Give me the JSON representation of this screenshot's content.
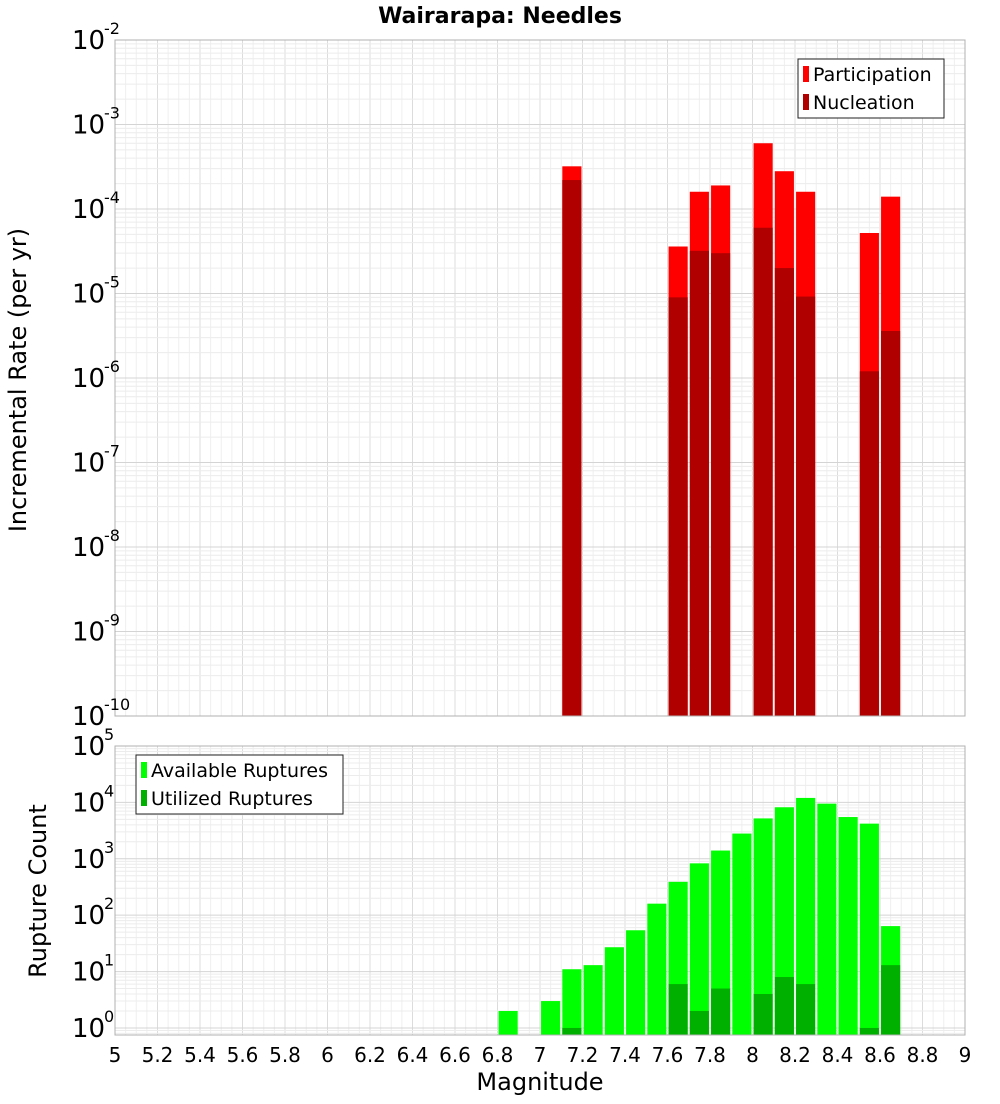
{
  "chart_data": [
    {
      "type": "bar",
      "title": "Wairarapa: Needles",
      "ylabel": "Incremental Rate (per yr)",
      "xlabel": "",
      "xlim": [
        5,
        9
      ],
      "ylim": [
        1e-10,
        0.01
      ],
      "yscale": "log",
      "grid": true,
      "legend_position": "top-right",
      "bar_width": 0.09,
      "series": [
        {
          "name": "Participation",
          "color": "#ff0000",
          "points": [
            {
              "x": 7.15,
              "y": 0.00032
            },
            {
              "x": 7.65,
              "y": 3.6e-05
            },
            {
              "x": 7.75,
              "y": 0.00016
            },
            {
              "x": 7.85,
              "y": 0.00019
            },
            {
              "x": 8.05,
              "y": 0.0006
            },
            {
              "x": 8.15,
              "y": 0.00028
            },
            {
              "x": 8.25,
              "y": 0.00016
            },
            {
              "x": 8.55,
              "y": 5.2e-05
            },
            {
              "x": 8.65,
              "y": 0.00014
            }
          ]
        },
        {
          "name": "Nucleation",
          "color": "#b00000",
          "points": [
            {
              "x": 7.15,
              "y": 0.00022
            },
            {
              "x": 7.65,
              "y": 9e-06
            },
            {
              "x": 7.75,
              "y": 3.2e-05
            },
            {
              "x": 7.85,
              "y": 3e-05
            },
            {
              "x": 8.05,
              "y": 6e-05
            },
            {
              "x": 8.15,
              "y": 2e-05
            },
            {
              "x": 8.25,
              "y": 9.2e-06
            },
            {
              "x": 8.55,
              "y": 1.2e-06
            },
            {
              "x": 8.65,
              "y": 3.6e-06
            }
          ]
        }
      ]
    },
    {
      "type": "bar",
      "title": "",
      "ylabel": "Rupture Count",
      "xlabel": "Magnitude",
      "xlim": [
        5,
        9
      ],
      "ylim": [
        0.75,
        100000
      ],
      "yscale": "log",
      "grid": true,
      "legend_position": "top-left",
      "bar_width": 0.09,
      "series": [
        {
          "name": "Available Ruptures",
          "color": "#00ff00",
          "points": [
            {
              "x": 6.85,
              "y": 2
            },
            {
              "x": 7.05,
              "y": 3
            },
            {
              "x": 7.15,
              "y": 11
            },
            {
              "x": 7.25,
              "y": 13
            },
            {
              "x": 7.35,
              "y": 27
            },
            {
              "x": 7.45,
              "y": 54
            },
            {
              "x": 7.55,
              "y": 160
            },
            {
              "x": 7.65,
              "y": 390
            },
            {
              "x": 7.75,
              "y": 830
            },
            {
              "x": 7.85,
              "y": 1400
            },
            {
              "x": 7.95,
              "y": 2800
            },
            {
              "x": 8.05,
              "y": 5200
            },
            {
              "x": 8.15,
              "y": 8200
            },
            {
              "x": 8.25,
              "y": 12000
            },
            {
              "x": 8.35,
              "y": 9500
            },
            {
              "x": 8.45,
              "y": 5500
            },
            {
              "x": 8.55,
              "y": 4200
            },
            {
              "x": 8.65,
              "y": 64
            }
          ]
        },
        {
          "name": "Utilized Ruptures",
          "color": "#00b000",
          "points": [
            {
              "x": 7.15,
              "y": 1
            },
            {
              "x": 7.65,
              "y": 6
            },
            {
              "x": 7.75,
              "y": 2
            },
            {
              "x": 7.85,
              "y": 5
            },
            {
              "x": 8.05,
              "y": 4
            },
            {
              "x": 8.15,
              "y": 8
            },
            {
              "x": 8.25,
              "y": 6
            },
            {
              "x": 8.55,
              "y": 1
            },
            {
              "x": 8.65,
              "y": 13
            }
          ]
        }
      ]
    }
  ],
  "x_ticks": [
    "5",
    "5.2",
    "5.4",
    "5.6",
    "5.8",
    "6",
    "6.2",
    "6.4",
    "6.6",
    "6.8",
    "7",
    "7.2",
    "7.4",
    "7.6",
    "7.8",
    "8",
    "8.2",
    "8.4",
    "8.6",
    "8.8",
    "9"
  ],
  "top_y_ticks": [
    {
      "base": "10",
      "exp": "-2"
    },
    {
      "base": "10",
      "exp": "-3"
    },
    {
      "base": "10",
      "exp": "-4"
    },
    {
      "base": "10",
      "exp": "-5"
    },
    {
      "base": "10",
      "exp": "-6"
    },
    {
      "base": "10",
      "exp": "-7"
    },
    {
      "base": "10",
      "exp": "-8"
    },
    {
      "base": "10",
      "exp": "-9"
    },
    {
      "base": "10",
      "exp": "-10"
    }
  ],
  "bottom_y_ticks": [
    {
      "base": "10",
      "exp": "5"
    },
    {
      "base": "10",
      "exp": "4"
    },
    {
      "base": "10",
      "exp": "3"
    },
    {
      "base": "10",
      "exp": "2"
    },
    {
      "base": "10",
      "exp": "1"
    },
    {
      "base": "10",
      "exp": "0"
    }
  ]
}
